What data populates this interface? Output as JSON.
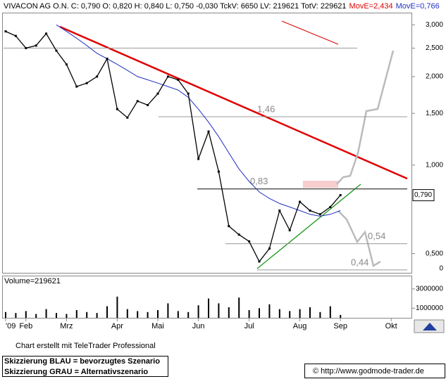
{
  "header": {
    "title": "VIVACON AG O.N. C: 0,790 O: 0,820 H: 0,840 L: 0,750 -0,030 TckV: 6650 LV: 219621 TotV: 229621",
    "indicator_red": "MovE=2,434"
  },
  "chart_data": {
    "type": "line",
    "log_scale": true,
    "color": "#000000",
    "categories": [
      "'09",
      null,
      "Feb",
      null,
      null,
      null,
      "Mrz",
      null,
      null,
      null,
      null,
      "Apr",
      null,
      null,
      null,
      "Mai",
      null,
      null,
      null,
      "Jun",
      null,
      null,
      null,
      null,
      "Jul",
      null,
      null,
      null,
      null,
      "Aug",
      null,
      null,
      null,
      "Sep",
      null,
      null,
      null,
      null,
      "Okt",
      null,
      null
    ],
    "values": [
      2.85,
      2.75,
      2.5,
      2.55,
      2.8,
      2.45,
      2.2,
      1.85,
      1.9,
      2.0,
      2.3,
      1.55,
      1.45,
      1.65,
      1.6,
      1.75,
      2.0,
      1.95,
      1.75,
      1.05,
      1.3,
      0.95,
      0.62,
      0.58,
      0.55,
      0.47,
      0.52,
      0.7,
      0.6,
      0.75,
      0.7,
      0.68,
      0.72,
      0.79,
      null,
      null,
      null,
      null,
      null,
      null,
      null
    ],
    "series": [
      {
        "name": "MovE=0,766",
        "color": "#2030c0",
        "values": [
          null,
          null,
          null,
          null,
          null,
          3.0,
          2.85,
          2.7,
          2.55,
          2.4,
          2.3,
          2.2,
          2.1,
          2.0,
          1.95,
          1.9,
          1.85,
          1.8,
          1.7,
          1.55,
          1.4,
          1.25,
          1.1,
          0.97,
          0.88,
          0.81,
          0.77,
          0.74,
          0.72,
          0.7,
          0.68,
          0.67,
          0.68,
          0.7,
          null,
          null,
          null,
          null,
          null,
          null,
          null
        ]
      }
    ],
    "ylim": [
      0.43,
      3.3
    ],
    "yticks": [
      {
        "value": 3,
        "label": "3,000"
      },
      {
        "value": 2.5,
        "label": "2,500"
      },
      {
        "value": 2,
        "label": "2,000"
      },
      {
        "value": 1.5,
        "label": "1,500"
      },
      {
        "value": 1,
        "label": "1,000"
      },
      {
        "value": 0.5,
        "label": "0,500"
      }
    ],
    "axis_stub": "0",
    "price_marker": {
      "value": 0.79,
      "label": "0,790"
    },
    "levels": [
      2.5,
      1.46,
      0.83,
      0.54,
      0.44
    ],
    "level_labels": [
      null,
      "1,46",
      "0,83",
      "0,54",
      "0,44"
    ],
    "volume": {
      "label": "Volume=219621",
      "color": "#000000",
      "ylim": [
        0,
        4300000
      ],
      "yticks": [
        1000000,
        3000000
      ],
      "values": [
        600000,
        500000,
        700000,
        400000,
        900000,
        500000,
        400000,
        800000,
        600000,
        500000,
        1200000,
        2200000,
        900000,
        700000,
        600000,
        800000,
        1500000,
        700000,
        600000,
        1300000,
        2000000,
        1500000,
        1100000,
        2100000,
        800000,
        1000000,
        1400000,
        900000,
        700000,
        900000,
        1100000,
        600000,
        1200000,
        300000,
        null,
        null,
        null,
        null,
        null,
        null,
        null
      ]
    }
  },
  "footer": {
    "credit": "Chart erstellt mit TeleTrader Professional",
    "legend_blue": "Skizzierung BLAU = bevorzugtes Szenario",
    "legend_gray": "Skizzierung GRAU = Alternativszenario",
    "source": "© http://www.godmode-trader.de"
  }
}
